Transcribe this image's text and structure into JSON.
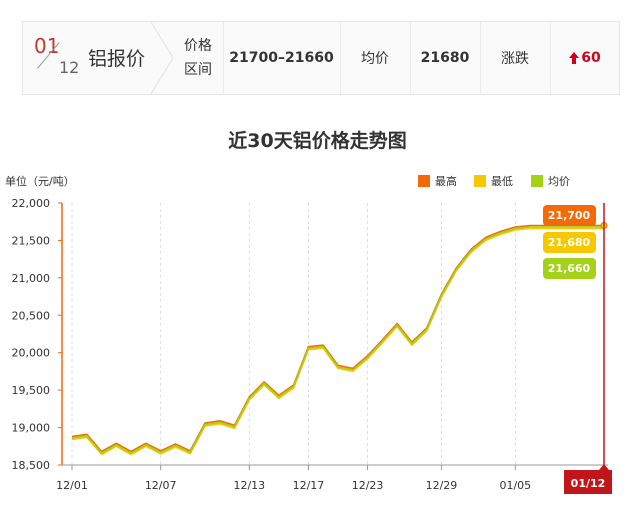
{
  "summary": {
    "day": "01",
    "month": "12",
    "title": "铝报价",
    "range_label_1": "价格",
    "range_label_2": "区间",
    "range_value": "21700–21660",
    "avg_label": "均价",
    "avg_value": "21680",
    "change_label": "涨跌",
    "change_value": "60",
    "colors": {
      "up": "#d0021b"
    }
  },
  "chart_data": {
    "type": "line",
    "title": "近30天铝价格走势图",
    "ylabel": "单位（元/吨）",
    "ylim": [
      18500,
      22000
    ],
    "yticks": [
      22000,
      21500,
      21000,
      20500,
      20000,
      19500,
      19000,
      18500
    ],
    "ytick_labels": [
      "22,000",
      "21,500",
      "21,000",
      "20,500",
      "20,000",
      "19,500",
      "19,000",
      "18,500"
    ],
    "xtick_labels": [
      "12/01",
      "12/07",
      "12/13",
      "12/17",
      "12/23",
      "12/29",
      "01/05",
      "01/12"
    ],
    "legend": [
      "最高",
      "最低",
      "均价"
    ],
    "colors": [
      "#f4690a",
      "#f6c800",
      "#a5d117"
    ],
    "legend_position": "top-right",
    "grid": "vertical-dashed",
    "current_label": "01/12",
    "x": [
      "12/01",
      "12/02",
      "12/03",
      "12/04",
      "12/05",
      "12/06",
      "12/07",
      "12/08",
      "12/09",
      "12/10",
      "12/11",
      "12/12",
      "12/13",
      "12/14",
      "12/15",
      "12/16",
      "12/17",
      "12/18",
      "12/19",
      "12/20",
      "12/23",
      "12/24",
      "12/25",
      "12/26",
      "12/27",
      "12/29",
      "12/30",
      "12/31",
      "01/02",
      "01/03",
      "01/05",
      "01/06",
      "01/07",
      "01/08",
      "01/09",
      "01/10",
      "01/12"
    ],
    "series": [
      {
        "name": "最高",
        "values": [
          18880,
          18910,
          18680,
          18790,
          18680,
          18790,
          18690,
          18780,
          18690,
          19060,
          19090,
          19030,
          19410,
          19610,
          19430,
          19570,
          20080,
          20100,
          19830,
          19790,
          19960,
          20170,
          20390,
          20140,
          20330,
          20780,
          21130,
          21380,
          21540,
          21620,
          21680,
          21700,
          21700,
          21700,
          21700,
          21700,
          21700
        ]
      },
      {
        "name": "最低",
        "values": [
          18840,
          18870,
          18640,
          18750,
          18640,
          18750,
          18650,
          18740,
          18650,
          19020,
          19050,
          18990,
          19370,
          19570,
          19390,
          19530,
          20040,
          20060,
          19790,
          19750,
          19920,
          20130,
          20350,
          20100,
          20290,
          20740,
          21090,
          21340,
          21500,
          21580,
          21640,
          21660,
          21660,
          21660,
          21660,
          21660,
          21660
        ]
      },
      {
        "name": "均价",
        "values": [
          18860,
          18890,
          18660,
          18770,
          18660,
          18770,
          18670,
          18760,
          18670,
          19040,
          19070,
          19010,
          19390,
          19590,
          19410,
          19550,
          20060,
          20080,
          19810,
          19770,
          19940,
          20150,
          20370,
          20120,
          20310,
          20760,
          21110,
          21360,
          21520,
          21600,
          21660,
          21680,
          21680,
          21680,
          21680,
          21680,
          21680
        ]
      }
    ],
    "end_labels": [
      "21,700",
      "21,680",
      "21,660"
    ]
  }
}
